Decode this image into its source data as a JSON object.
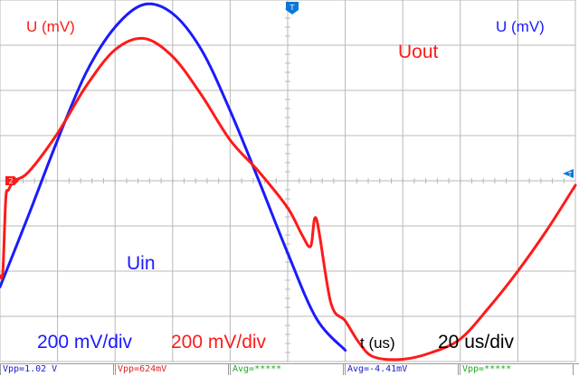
{
  "colors": {
    "ch1": "#1a1aff",
    "ch2": "#ff1a1a",
    "grid": "#b8b8b8",
    "marker": "#0a78d6",
    "meas_green": "#22aa22",
    "meas_red": "#dd2222",
    "meas_blue": "#1a1acc"
  },
  "markers": {
    "trigger_top": "T",
    "ch2_ref": "2",
    "trigger_right": "T"
  },
  "chart_data": {
    "type": "line",
    "grid": true,
    "x_divisions": 10,
    "y_divisions": 8,
    "xlim": [
      0,
      200
    ],
    "ylim": [
      -800,
      800
    ],
    "xlabel": "t (us)",
    "ylabel_left": "U (mV)",
    "ylabel_right": "U (mV)",
    "scales": {
      "ch1": "200 mV/div",
      "ch2": "200 mV/div",
      "time": "20 us/div"
    },
    "series": [
      {
        "name": "Uin",
        "color": "#1a1aff",
        "x": [
          0,
          10,
          20,
          30,
          40,
          50,
          60,
          70,
          80,
          90,
          100,
          110,
          120
        ],
        "values": [
          -470,
          -150,
          180,
          480,
          680,
          780,
          740,
          580,
          310,
          0,
          -320,
          -610,
          -750
        ]
      },
      {
        "name": "Uout",
        "color": "#ff1a1a",
        "x": [
          0,
          1,
          2,
          3,
          5,
          10,
          20,
          30,
          40,
          50,
          60,
          70,
          80,
          90,
          100,
          105,
          108,
          110,
          115,
          120,
          125,
          130,
          140,
          150,
          160,
          170,
          180,
          190,
          200
        ],
        "values": [
          -420,
          -400,
          -80,
          -40,
          0,
          40,
          210,
          420,
          580,
          630,
          550,
          380,
          180,
          40,
          -120,
          -240,
          -290,
          -170,
          -540,
          -620,
          -720,
          -780,
          -790,
          -760,
          -700,
          -560,
          -400,
          -220,
          -20
        ]
      }
    ]
  },
  "measurements": [
    {
      "label": "Vpp=1.02 V",
      "color": "#1a1acc"
    },
    {
      "label": "Vpp=624mV",
      "color": "#dd2222"
    },
    {
      "label": "Avg=*****",
      "color": "#22aa22"
    },
    {
      "label": "Avg=-4.41mV",
      "color": "#1a1acc"
    },
    {
      "label": "Vpp=*****",
      "color": "#22aa22"
    }
  ]
}
